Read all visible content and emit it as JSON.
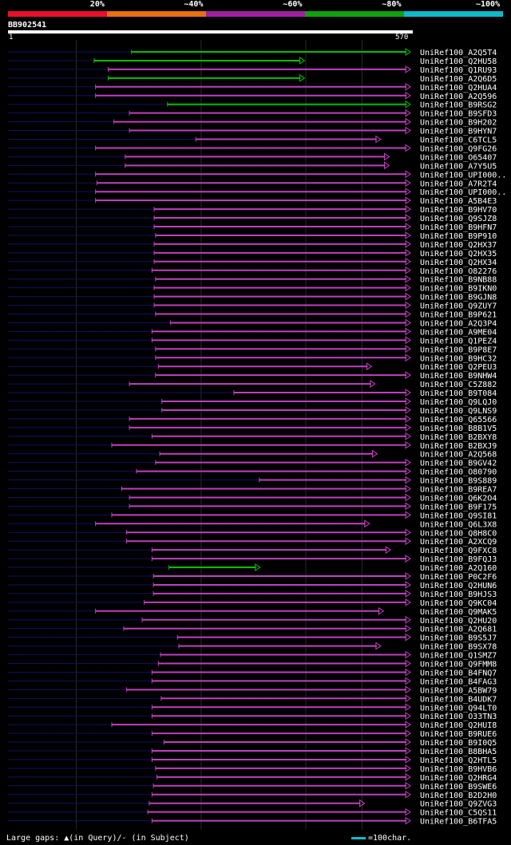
{
  "legend": {
    "segments": [
      {
        "label": "20%",
        "color": "#e8102a"
      },
      {
        "label": "~40%",
        "color": "#e87010"
      },
      {
        "label": "~60%",
        "color": "#a020a0"
      },
      {
        "label": "~80%",
        "color": "#10a010"
      },
      {
        "label": "~100%",
        "color": "#10b8c8"
      }
    ]
  },
  "query": {
    "id": "BB902541",
    "start": "1",
    "end": "570",
    "length": 570
  },
  "hit_colors": {
    "green": "#00c000",
    "purple": "#c040c0",
    "query_line": "#101060",
    "marker": "#ffff80"
  },
  "hits": [
    {
      "name": "UniRef100_A2Q5T4",
      "start": 175,
      "end": 570,
      "color": "green",
      "ext": false
    },
    {
      "name": "UniRef100_Q2HU58",
      "start": 122,
      "end": 420,
      "color": "green",
      "ext": false
    },
    {
      "name": "UniRef100_Q1RU93",
      "start": 142,
      "end": 570,
      "color": "purple",
      "ext": false
    },
    {
      "name": "UniRef100_A2Q6D5",
      "start": 142,
      "end": 420,
      "color": "green",
      "ext": false
    },
    {
      "name": "UniRef100_Q2HUA4",
      "start": 124,
      "end": 570,
      "color": "purple",
      "ext": false
    },
    {
      "name": "UniRef100_A2Q596",
      "start": 124,
      "end": 570,
      "color": "purple",
      "ext": false
    },
    {
      "name": "UniRef100_B9RSG2",
      "start": 226,
      "end": 570,
      "color": "green",
      "ext": false
    },
    {
      "name": "UniRef100_B9SFD3",
      "start": 172,
      "end": 570,
      "color": "purple",
      "ext": false
    },
    {
      "name": "UniRef100_B9H202",
      "start": 150,
      "end": 570,
      "color": "purple",
      "ext": false
    },
    {
      "name": "UniRef100_B9HYN7",
      "start": 172,
      "end": 570,
      "color": "purple",
      "ext": false
    },
    {
      "name": "UniRef100_C6TCL5",
      "start": 266,
      "end": 528,
      "color": "purple",
      "ext": false
    },
    {
      "name": "UniRef100_Q9FG26",
      "start": 124,
      "end": 570,
      "color": "purple",
      "ext": false
    },
    {
      "name": "UniRef100_O65407",
      "start": 166,
      "end": 540,
      "color": "purple",
      "ext": false
    },
    {
      "name": "UniRef100_A7Y5U5",
      "start": 166,
      "end": 540,
      "color": "purple",
      "ext": false
    },
    {
      "name": "UniRef100_UPI000..",
      "start": 124,
      "end": 570,
      "color": "purple",
      "ext": false
    },
    {
      "name": "UniRef100_A7R2T4",
      "start": 126,
      "end": 570,
      "color": "purple",
      "ext": false
    },
    {
      "name": "UniRef100_UPI000..",
      "start": 124,
      "end": 570,
      "color": "purple",
      "ext": false
    },
    {
      "name": "UniRef100_A5B4E3",
      "start": 124,
      "end": 570,
      "color": "purple",
      "ext": false
    },
    {
      "name": "UniRef100_B9HV70",
      "start": 207,
      "end": 570,
      "color": "purple",
      "ext": false
    },
    {
      "name": "UniRef100_Q9SJZ8",
      "start": 207,
      "end": 570,
      "color": "purple",
      "ext": false
    },
    {
      "name": "UniRef100_B9HFN7",
      "start": 207,
      "end": 570,
      "color": "purple",
      "ext": false
    },
    {
      "name": "UniRef100_B9P910",
      "start": 209,
      "end": 570,
      "color": "purple",
      "ext": false
    },
    {
      "name": "UniRef100_Q2HX37",
      "start": 207,
      "end": 570,
      "color": "purple",
      "ext": false
    },
    {
      "name": "UniRef100_Q2HX35",
      "start": 207,
      "end": 570,
      "color": "purple",
      "ext": false
    },
    {
      "name": "UniRef100_Q2HX34",
      "start": 207,
      "end": 570,
      "color": "purple",
      "ext": false
    },
    {
      "name": "UniRef100_O82276",
      "start": 204,
      "end": 570,
      "color": "purple",
      "ext": false
    },
    {
      "name": "UniRef100_B9NB88",
      "start": 209,
      "end": 570,
      "color": "purple",
      "ext": false
    },
    {
      "name": "UniRef100_B9IKN0",
      "start": 207,
      "end": 570,
      "color": "purple",
      "ext": false
    },
    {
      "name": "UniRef100_B9GJN8",
      "start": 207,
      "end": 570,
      "color": "purple",
      "ext": false
    },
    {
      "name": "UniRef100_Q9ZUY7",
      "start": 207,
      "end": 570,
      "color": "purple",
      "ext": false
    },
    {
      "name": "UniRef100_B9P621",
      "start": 209,
      "end": 570,
      "color": "purple",
      "ext": false
    },
    {
      "name": "UniRef100_A2Q3P4",
      "start": 230,
      "end": 570,
      "color": "purple",
      "ext": false
    },
    {
      "name": "UniRef100_A9ME04",
      "start": 204,
      "end": 570,
      "color": "purple",
      "ext": false
    },
    {
      "name": "UniRef100_Q1PEZ4",
      "start": 204,
      "end": 570,
      "color": "purple",
      "ext": false
    },
    {
      "name": "UniRef100_B9P8E7",
      "start": 209,
      "end": 570,
      "color": "purple",
      "ext": false
    },
    {
      "name": "UniRef100_B9HC32",
      "start": 209,
      "end": 570,
      "color": "purple",
      "ext": false
    },
    {
      "name": "UniRef100_Q2PEU3",
      "start": 213,
      "end": 515,
      "color": "purple",
      "ext": false
    },
    {
      "name": "UniRef100_B9NHW4",
      "start": 209,
      "end": 570,
      "color": "purple",
      "ext": false
    },
    {
      "name": "UniRef100_C5Z882",
      "start": 172,
      "end": 520,
      "color": "purple",
      "ext": false
    },
    {
      "name": "UniRef100_B9T084",
      "start": 320,
      "end": 570,
      "color": "purple",
      "ext": false
    },
    {
      "name": "UniRef100_Q9LQJ0",
      "start": 218,
      "end": 570,
      "color": "purple",
      "ext": false
    },
    {
      "name": "UniRef100_Q9LNS9",
      "start": 218,
      "end": 570,
      "color": "purple",
      "ext": false
    },
    {
      "name": "UniRef100_Q65566",
      "start": 172,
      "end": 570,
      "color": "purple",
      "ext": false
    },
    {
      "name": "UniRef100_B8B1V5",
      "start": 172,
      "end": 570,
      "color": "purple",
      "ext": false
    },
    {
      "name": "UniRef100_B2BXY8",
      "start": 204,
      "end": 570,
      "color": "purple",
      "ext": false
    },
    {
      "name": "UniRef100_B2BXJ9",
      "start": 147,
      "end": 570,
      "color": "purple",
      "ext": false
    },
    {
      "name": "UniRef100_A2Q568",
      "start": 215,
      "end": 523,
      "color": "purple",
      "ext": false
    },
    {
      "name": "UniRef100_B9GV42",
      "start": 209,
      "end": 570,
      "color": "purple",
      "ext": false
    },
    {
      "name": "UniRef100_O80790",
      "start": 182,
      "end": 570,
      "color": "purple",
      "ext": false
    },
    {
      "name": "UniRef100_B9S889",
      "start": 356,
      "end": 570,
      "color": "purple",
      "ext": false
    },
    {
      "name": "UniRef100_B9REA7",
      "start": 161,
      "end": 570,
      "color": "purple",
      "ext": false
    },
    {
      "name": "UniRef100_Q6K2O4",
      "start": 172,
      "end": 570,
      "color": "purple",
      "ext": false
    },
    {
      "name": "UniRef100_B9F175",
      "start": 172,
      "end": 570,
      "color": "purple",
      "ext": false
    },
    {
      "name": "UniRef100_Q9SI81",
      "start": 147,
      "end": 570,
      "color": "purple",
      "ext": false
    },
    {
      "name": "UniRef100_Q6L3X8",
      "start": 124,
      "end": 512,
      "color": "purple",
      "ext": false
    },
    {
      "name": "UniRef100_Q8H8C0",
      "start": 168,
      "end": 570,
      "color": "purple",
      "ext": false
    },
    {
      "name": "UniRef100_A2XCQ9",
      "start": 168,
      "end": 570,
      "color": "purple",
      "ext": false
    },
    {
      "name": "UniRef100_Q9FXC8",
      "start": 204,
      "end": 542,
      "color": "purple",
      "ext": false
    },
    {
      "name": "UniRef100_B9FQJ3",
      "start": 204,
      "end": 570,
      "color": "purple",
      "ext": false
    },
    {
      "name": "UniRef100_A2Q160",
      "start": 228,
      "end": 357,
      "color": "green",
      "ext": false
    },
    {
      "name": "UniRef100_P0C2F6",
      "start": 206,
      "end": 570,
      "color": "purple",
      "ext": false
    },
    {
      "name": "UniRef100_Q2HUN6",
      "start": 206,
      "end": 570,
      "color": "purple",
      "ext": false
    },
    {
      "name": "UniRef100_B9HJS3",
      "start": 206,
      "end": 570,
      "color": "purple",
      "ext": false
    },
    {
      "name": "UniRef100_Q9KC04",
      "start": 193,
      "end": 570,
      "color": "purple",
      "ext": false
    },
    {
      "name": "UniRef100_Q9MAK5",
      "start": 124,
      "end": 532,
      "color": "purple",
      "ext": false
    },
    {
      "name": "UniRef100_Q2HU20",
      "start": 190,
      "end": 570,
      "color": "purple",
      "ext": false
    },
    {
      "name": "UniRef100_A2Q681",
      "start": 164,
      "end": 570,
      "color": "purple",
      "ext": false
    },
    {
      "name": "UniRef100_B9S5J7",
      "start": 240,
      "end": 570,
      "color": "purple",
      "ext": false
    },
    {
      "name": "UniRef100_B9SX78",
      "start": 242,
      "end": 528,
      "color": "purple",
      "ext": false
    },
    {
      "name": "UniRef100_Q1SMZ7",
      "start": 216,
      "end": 570,
      "color": "purple",
      "ext": false
    },
    {
      "name": "UniRef100_Q9FMM8",
      "start": 213,
      "end": 570,
      "color": "purple",
      "ext": false
    },
    {
      "name": "UniRef100_B4FNQ7",
      "start": 204,
      "end": 570,
      "color": "purple",
      "ext": false
    },
    {
      "name": "UniRef100_B4FAG3",
      "start": 204,
      "end": 570,
      "color": "purple",
      "ext": false
    },
    {
      "name": "UniRef100_A5BW79",
      "start": 168,
      "end": 570,
      "color": "purple",
      "ext": false
    },
    {
      "name": "UniRef100_B4UDK7",
      "start": 217,
      "end": 570,
      "color": "purple",
      "ext": false
    },
    {
      "name": "UniRef100_Q94LT0",
      "start": 204,
      "end": 570,
      "color": "purple",
      "ext": false
    },
    {
      "name": "UniRef100_O33TN3",
      "start": 204,
      "end": 570,
      "color": "purple",
      "ext": false
    },
    {
      "name": "UniRef100_Q2HUI8",
      "start": 147,
      "end": 570,
      "color": "purple",
      "ext": false
    },
    {
      "name": "UniRef100_B9RUE6",
      "start": 204,
      "end": 570,
      "color": "purple",
      "ext": false
    },
    {
      "name": "UniRef100_B9I0Q5",
      "start": 221,
      "end": 570,
      "color": "purple",
      "ext": false
    },
    {
      "name": "UniRef100_B8BHA5",
      "start": 204,
      "end": 570,
      "color": "purple",
      "ext": false
    },
    {
      "name": "UniRef100_Q2HTL5",
      "start": 204,
      "end": 570,
      "color": "purple",
      "ext": false
    },
    {
      "name": "UniRef100_B9HVB6",
      "start": 209,
      "end": 570,
      "color": "purple",
      "ext": false
    },
    {
      "name": "UniRef100_Q2HRG4",
      "start": 211,
      "end": 570,
      "color": "purple",
      "ext": false
    },
    {
      "name": "UniRef100_B9SWE6",
      "start": 206,
      "end": 570,
      "color": "purple",
      "ext": false
    },
    {
      "name": "UniRef100_B2D2H0",
      "start": 204,
      "end": 570,
      "color": "purple",
      "ext": false
    },
    {
      "name": "UniRef100_Q9ZVG3",
      "start": 200,
      "end": 505,
      "color": "purple",
      "ext": false
    },
    {
      "name": "UniRef100_C5QS11",
      "start": 198,
      "end": 570,
      "color": "purple",
      "ext": false
    },
    {
      "name": "UniRef100_B6TFA5",
      "start": 204,
      "end": 570,
      "color": "purple",
      "ext": false
    }
  ],
  "footer": {
    "left": "Large gaps: ▲(in Query)/- (in Subject)",
    "right": "=100char."
  }
}
